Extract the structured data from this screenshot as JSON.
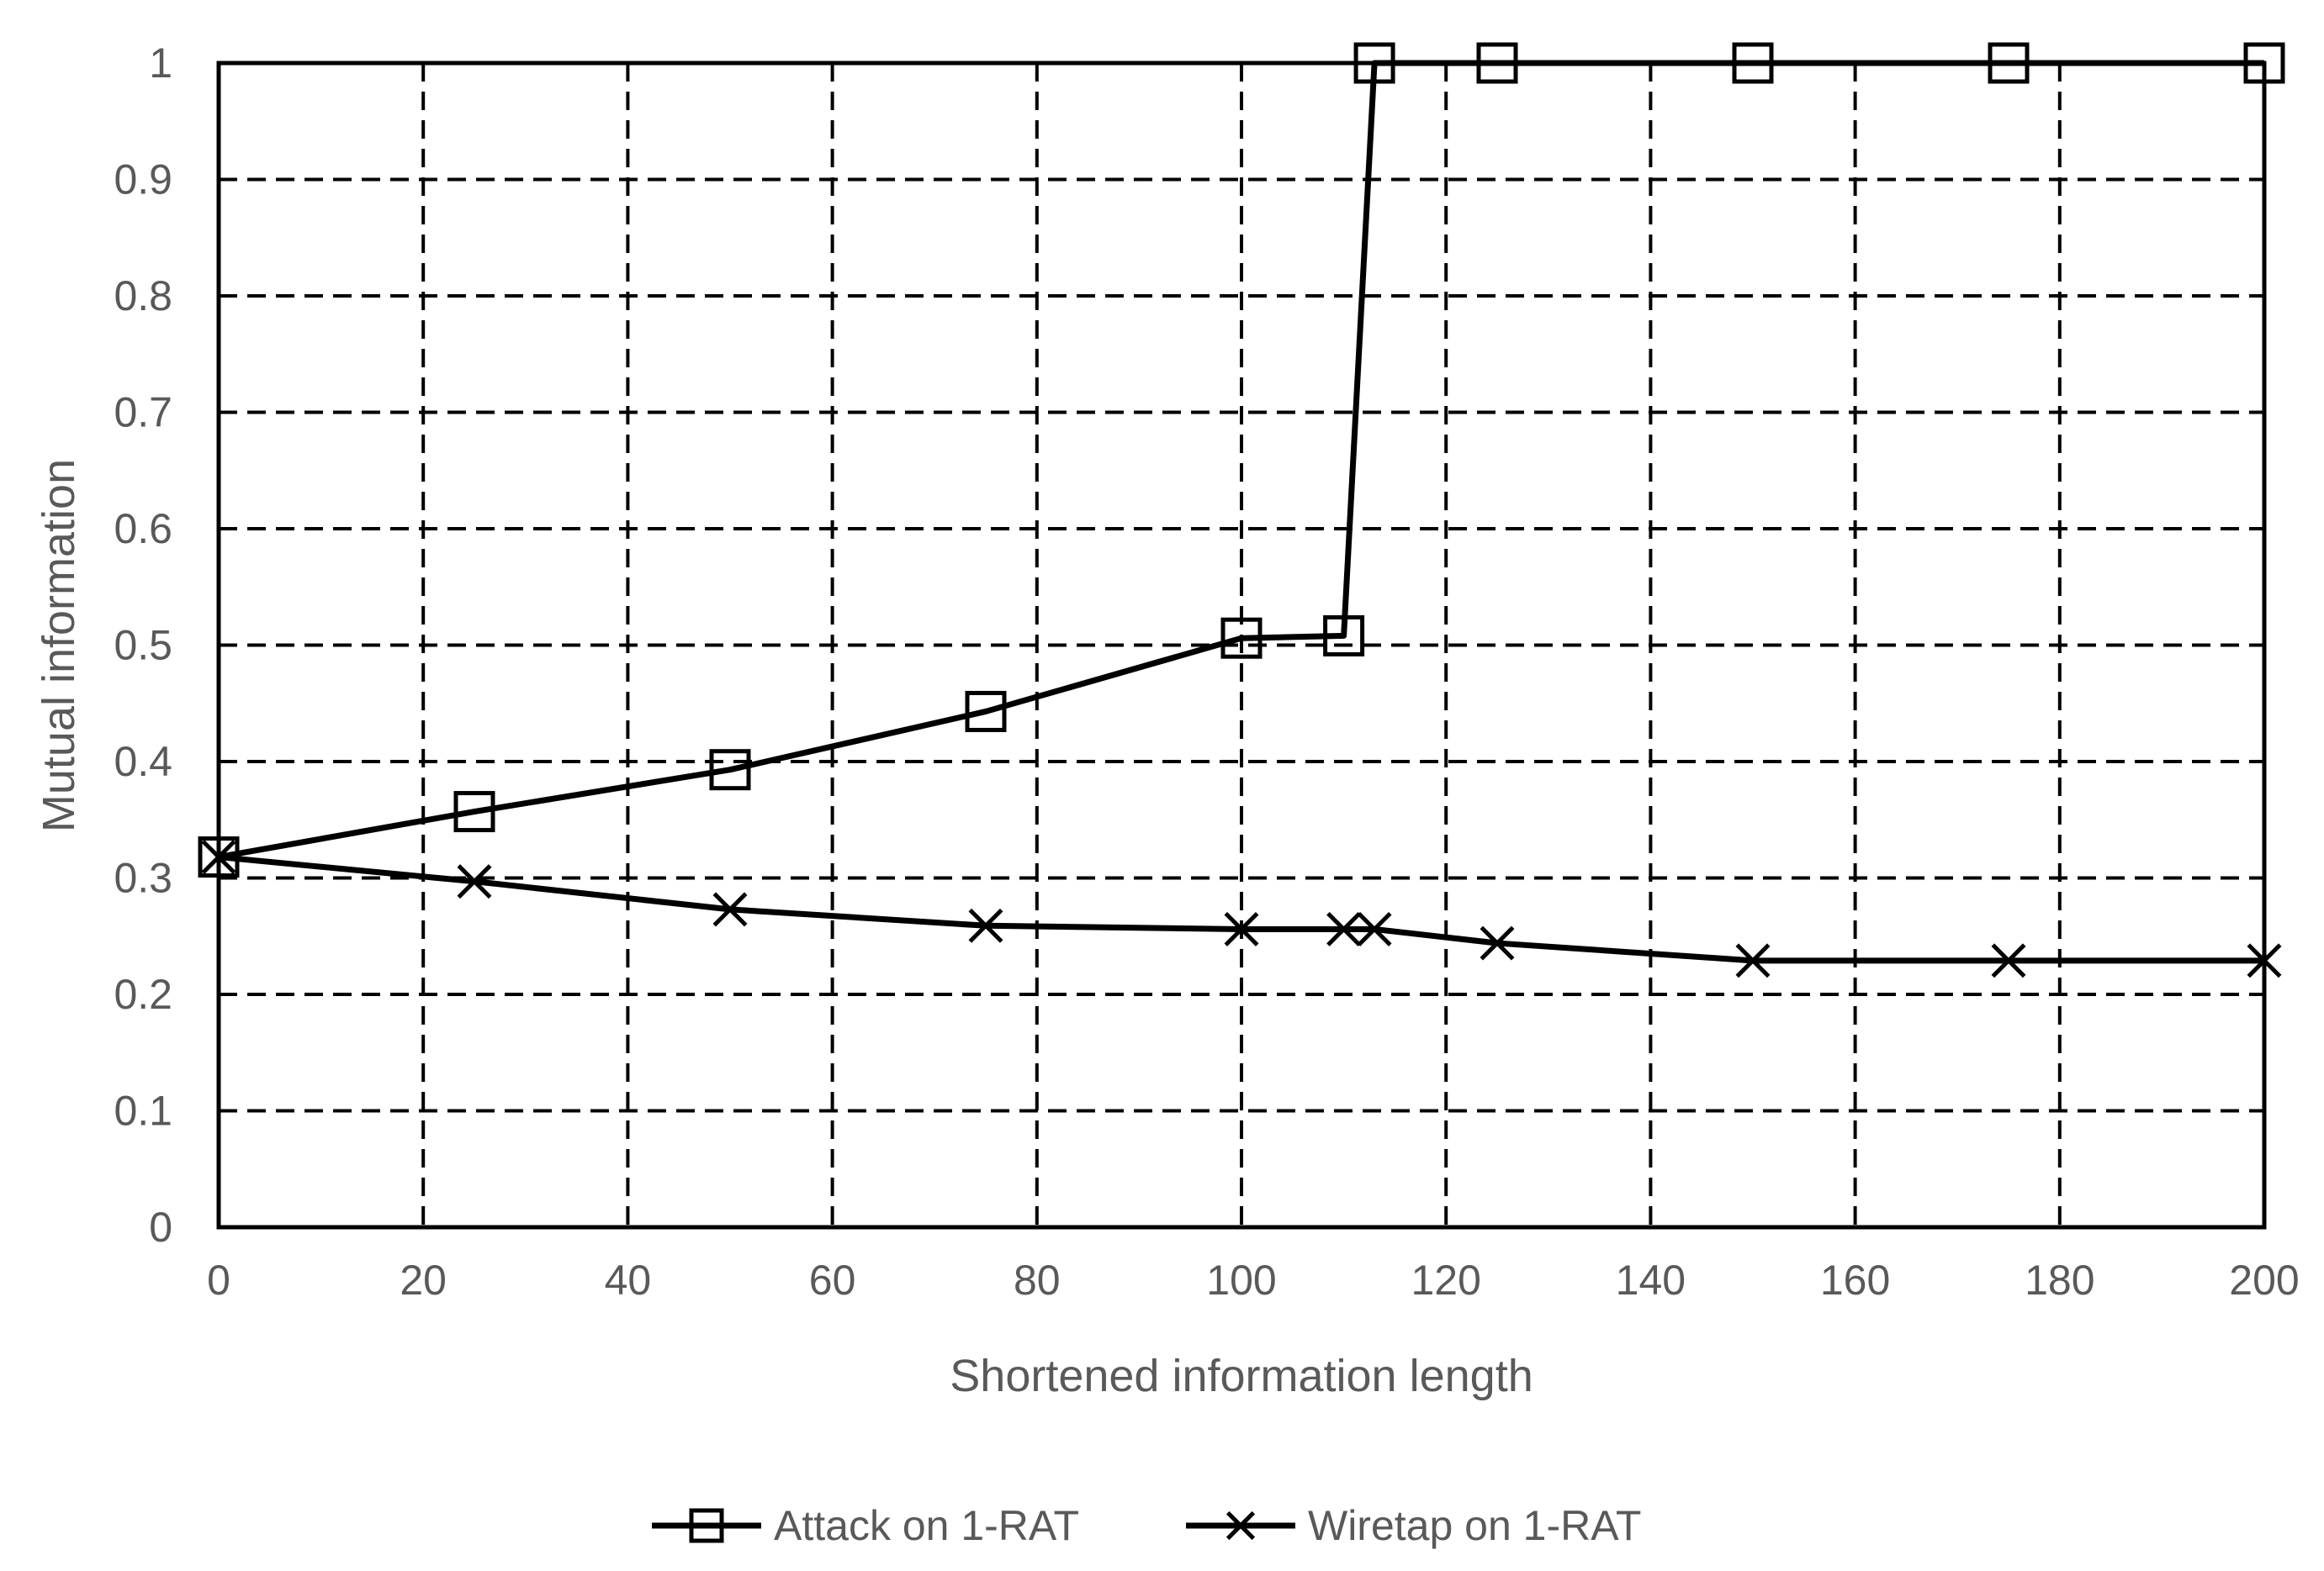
{
  "chart_data": {
    "type": "line",
    "title": "",
    "xlabel": "Shortened information length",
    "ylabel": "Mutual information",
    "xlim": [
      0,
      200
    ],
    "ylim": [
      0,
      1
    ],
    "x_ticks": [
      "0",
      "20",
      "40",
      "60",
      "80",
      "100",
      "120",
      "140",
      "160",
      "180",
      "200"
    ],
    "y_ticks": [
      "0",
      "0.1",
      "0.2",
      "0.3",
      "0.4",
      "0.5",
      "0.6",
      "0.7",
      "0.8",
      "0.9",
      "1"
    ],
    "grid": true,
    "grid_style": "dashed",
    "legend_position": "bottom",
    "series": [
      {
        "name": "Attack on 1-RAT",
        "marker": "square",
        "color": "#000000",
        "x": [
          0,
          25,
          50,
          75,
          100,
          110,
          113,
          125,
          150,
          175,
          200
        ],
        "y": [
          0.318,
          0.357,
          0.393,
          0.443,
          0.506,
          0.508,
          1.0,
          1.0,
          1.0,
          1.0,
          1.0
        ]
      },
      {
        "name": "Wiretap on 1-RAT",
        "marker": "x",
        "color": "#000000",
        "x": [
          0,
          25,
          50,
          75,
          100,
          110,
          113,
          125,
          150,
          175,
          200
        ],
        "y": [
          0.318,
          0.297,
          0.273,
          0.259,
          0.256,
          0.256,
          0.256,
          0.244,
          0.229,
          0.229,
          0.229
        ]
      }
    ]
  }
}
